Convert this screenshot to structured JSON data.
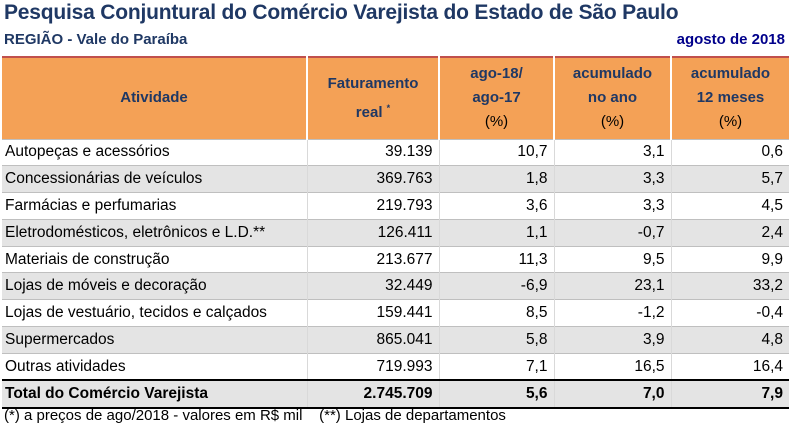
{
  "title": "Pesquisa Conjuntural do Comércio Varejista do Estado de São Paulo",
  "region": "REGIÃO - Vale do Paraíba",
  "date": "agosto  de 2018",
  "headers": {
    "atividade": "Atividade",
    "faturamento_line1": "Faturamento",
    "faturamento_line2": "real",
    "faturamento_sup": "*",
    "mes_line1": "ago-18/",
    "mes_line2": "ago-17",
    "mes_line3": "(%)",
    "acum_ano_line1": "acumulado",
    "acum_ano_line2": "no ano",
    "acum_ano_line3": "(%)",
    "acum_12_line1": "acumulado",
    "acum_12_line2": "12 meses",
    "acum_12_line3": "(%)"
  },
  "rows": [
    {
      "atividade": "Autopeças e acessórios",
      "faturamento": "39.139",
      "mes": "10,7",
      "acum_ano": "3,1",
      "acum_12": "0,6"
    },
    {
      "atividade": "Concessionárias de veículos",
      "faturamento": "369.763",
      "mes": "1,8",
      "acum_ano": "3,3",
      "acum_12": "5,7"
    },
    {
      "atividade": "Farmácias e perfumarias",
      "faturamento": "219.793",
      "mes": "3,6",
      "acum_ano": "3,3",
      "acum_12": "4,5"
    },
    {
      "atividade": "Eletrodomésticos, eletrônicos e L.D.**",
      "faturamento": "126.411",
      "mes": "1,1",
      "acum_ano": "-0,7",
      "acum_12": "2,4"
    },
    {
      "atividade": "Materiais de construção",
      "faturamento": "213.677",
      "mes": "11,3",
      "acum_ano": "9,5",
      "acum_12": "9,9"
    },
    {
      "atividade": "Lojas de móveis e decoração",
      "faturamento": "32.449",
      "mes": "-6,9",
      "acum_ano": "23,1",
      "acum_12": "33,2"
    },
    {
      "atividade": "Lojas de vestuário, tecidos e calçados",
      "faturamento": "159.441",
      "mes": "8,5",
      "acum_ano": "-1,2",
      "acum_12": "-0,4"
    },
    {
      "atividade": "Supermercados",
      "faturamento": "865.041",
      "mes": "5,8",
      "acum_ano": "3,9",
      "acum_12": "4,8"
    },
    {
      "atividade": "Outras atividades",
      "faturamento": "719.993",
      "mes": "7,1",
      "acum_ano": "16,5",
      "acum_12": "16,4"
    }
  ],
  "total": {
    "atividade": "Total do Comércio Varejista",
    "faturamento": "2.745.709",
    "mes": "5,6",
    "acum_ano": "7,0",
    "acum_12": "7,9"
  },
  "footnote": "(*) a preços de ago/2018 - valores em R$ mil    (**) Lojas de departamentos",
  "colors": {
    "header_bg": "#f4a156",
    "header_text": "#1f3864",
    "shade_row": "#e4e4e4",
    "title": "#1f3864"
  }
}
